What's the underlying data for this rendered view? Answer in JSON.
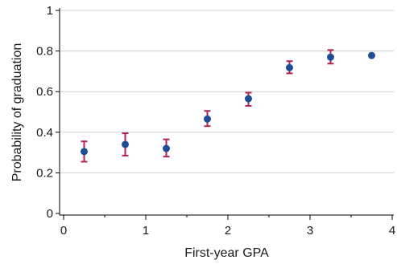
{
  "chart_data": {
    "type": "scatter",
    "title": "",
    "xlabel": "First-year GPA",
    "ylabel": "Probability of graduation",
    "xlim": [
      0,
      4
    ],
    "ylim": [
      0,
      1
    ],
    "xticks": [
      0,
      1,
      2,
      3,
      4
    ],
    "xtick_labels": [
      "0",
      "1",
      "2",
      "3",
      "4"
    ],
    "yticks": [
      0,
      0.2,
      0.4,
      0.6,
      0.8,
      1
    ],
    "ytick_labels": [
      "0",
      "0.2",
      "0.4",
      "0.6",
      "0.8",
      "1"
    ],
    "x_minor_ticks": [
      0.5,
      1.5,
      2.5,
      3.5
    ],
    "grid": "horizontal",
    "legend": "none",
    "series": [
      {
        "marker": "circle",
        "points": [
          {
            "x": 0.25,
            "y": 0.305,
            "ci_low": 0.255,
            "ci_high": 0.355
          },
          {
            "x": 0.75,
            "y": 0.34,
            "ci_low": 0.285,
            "ci_high": 0.395
          },
          {
            "x": 1.25,
            "y": 0.32,
            "ci_low": 0.28,
            "ci_high": 0.365
          },
          {
            "x": 1.75,
            "y": 0.465,
            "ci_low": 0.43,
            "ci_high": 0.505
          },
          {
            "x": 2.25,
            "y": 0.565,
            "ci_low": 0.53,
            "ci_high": 0.595
          },
          {
            "x": 2.75,
            "y": 0.718,
            "ci_low": 0.69,
            "ci_high": 0.75
          },
          {
            "x": 3.25,
            "y": 0.77,
            "ci_low": 0.738,
            "ci_high": 0.805
          },
          {
            "x": 3.75,
            "y": 0.778
          }
        ]
      }
    ],
    "colors": {
      "point": "#1f4e96",
      "errorbar": "#b0244f",
      "grid": "#d0d0d0",
      "axis": "#000000",
      "text": "#1a1a1a"
    }
  }
}
